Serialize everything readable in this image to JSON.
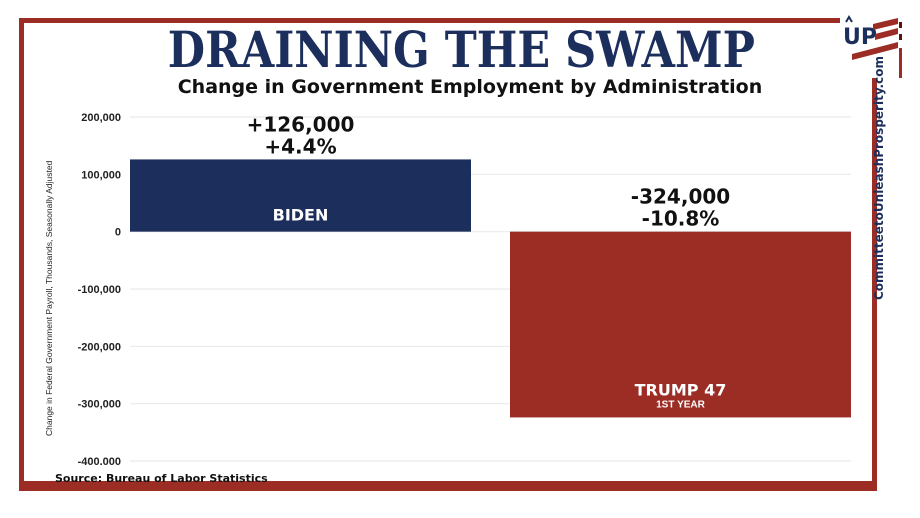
{
  "header": {
    "title": "DRAINING THE SWAMP",
    "subtitle": "Change in Government Employment by Administration"
  },
  "branding": {
    "logo_text": "UP",
    "logo_icon": "up-flag-logo-icon",
    "website": "CommitteetoUnleashProsperity.com"
  },
  "footer": {
    "source": "Source: Bureau of Labor Statistics"
  },
  "colors": {
    "biden": "#1c2f5c",
    "trump": "#9b2d24",
    "frame": "#9b2d24",
    "title": "#1c2f5c"
  },
  "chart_data": {
    "type": "bar",
    "title": "DRAINING THE SWAMP",
    "subtitle": "Change in Government Employment by Administration",
    "xlabel": "",
    "ylabel": "Change in Federal Government Payroll, Thousands, Seasonally Adjusted",
    "ylim": [
      -400000,
      200000
    ],
    "yticks": [
      200000,
      100000,
      0,
      -100000,
      -200000,
      -300000,
      -400000
    ],
    "ytick_labels": [
      "200,000",
      "100,000",
      "0",
      "-100,000",
      "-200,000",
      "-300,000",
      "-400.000"
    ],
    "grid": true,
    "legend": "none",
    "categories": [
      "BIDEN",
      "TRUMP 47"
    ],
    "category_sublabels": [
      "",
      "1ST YEAR"
    ],
    "values": [
      126000,
      -324000
    ],
    "value_labels": [
      "+126,000",
      "-324,000"
    ],
    "percent_labels": [
      "+4.4%",
      "-10.8%"
    ],
    "colors": [
      "#1c2f5c",
      "#9b2d24"
    ],
    "source": "Source: Bureau of Labor Statistics"
  }
}
